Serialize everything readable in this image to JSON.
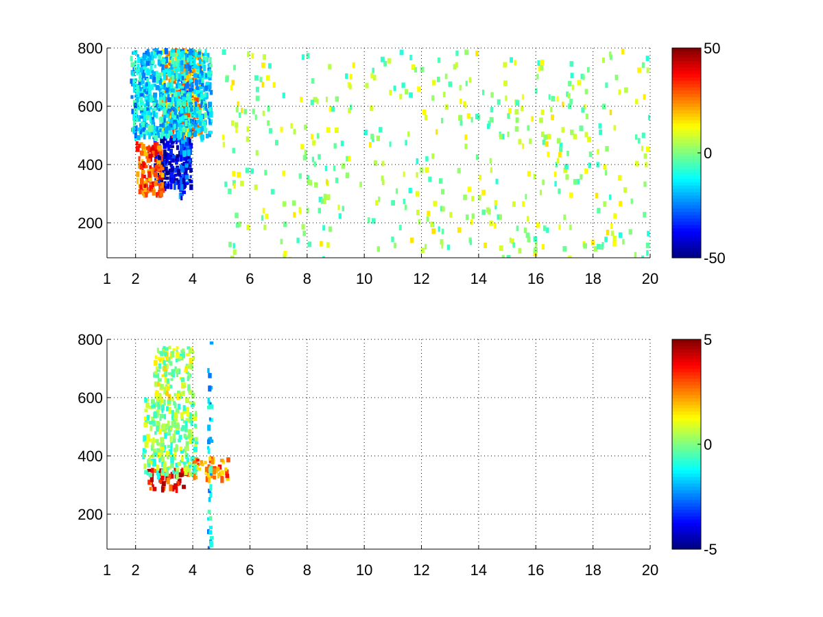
{
  "chart_data": [
    {
      "type": "heatmap",
      "title": "",
      "xlabel": "",
      "ylabel": "",
      "xlim": [
        1,
        20
      ],
      "ylim": [
        80,
        800
      ],
      "x_ticks": [
        1,
        2,
        4,
        6,
        8,
        10,
        12,
        14,
        16,
        18,
        20
      ],
      "y_ticks": [
        200,
        400,
        600,
        800
      ],
      "grid": true,
      "grid_style": "dotted",
      "colorbar": {
        "colormap": "jet",
        "min": -50,
        "max": 50,
        "ticks": [
          50,
          0,
          -50
        ]
      },
      "regions": [
        {
          "description_value": "strong negative core",
          "x_range": [
            2.6,
            3.9
          ],
          "y_range": [
            330,
            500
          ],
          "value": -40
        },
        {
          "description_value": "negative vertical band",
          "x_range": [
            3.5,
            3.8
          ],
          "y_range": [
            300,
            800
          ],
          "value": -30
        },
        {
          "description_value": "positive arc",
          "x_range": [
            2.0,
            2.9
          ],
          "y_range": [
            300,
            480
          ],
          "value": 30
        },
        {
          "description_value": "positive upper band",
          "x_range": [
            2.9,
            4.3
          ],
          "y_range": [
            500,
            800
          ],
          "value": 20
        },
        {
          "description_value": "mixed upper area",
          "x_range": [
            1.8,
            4.6
          ],
          "y_range": [
            500,
            800
          ],
          "value": -15
        },
        {
          "description_value": "sparse noise",
          "x_range": [
            5,
            20
          ],
          "y_range": [
            80,
            800
          ],
          "value": 3
        }
      ]
    },
    {
      "type": "heatmap",
      "title": "",
      "xlabel": "",
      "ylabel": "",
      "xlim": [
        1,
        20
      ],
      "ylim": [
        80,
        800
      ],
      "x_ticks": [
        1,
        2,
        4,
        6,
        8,
        10,
        12,
        14,
        16,
        18,
        20
      ],
      "y_ticks": [
        200,
        400,
        600,
        800
      ],
      "grid": true,
      "grid_style": "dotted",
      "colorbar": {
        "colormap": "jet",
        "min": -5,
        "max": 5,
        "ticks": [
          5,
          0,
          -5
        ]
      },
      "regions": [
        {
          "description_value": "positive low band",
          "x_range": [
            2.4,
            3.8
          ],
          "y_range": [
            290,
            360
          ],
          "value": 3.5
        },
        {
          "description_value": "neutral cluster",
          "x_range": [
            2.2,
            4.1
          ],
          "y_range": [
            340,
            600
          ],
          "value": 0
        },
        {
          "description_value": "upper sparse",
          "x_range": [
            2.6,
            4.0
          ],
          "y_range": [
            600,
            780
          ],
          "value": 0.5
        },
        {
          "description_value": "right orange patch",
          "x_range": [
            3.9,
            5.2
          ],
          "y_range": [
            330,
            400
          ],
          "value": 2.5
        },
        {
          "description_value": "vertical line",
          "x_range": [
            4.5,
            4.6
          ],
          "y_range": [
            80,
            800
          ],
          "value": -1.5
        }
      ]
    }
  ]
}
